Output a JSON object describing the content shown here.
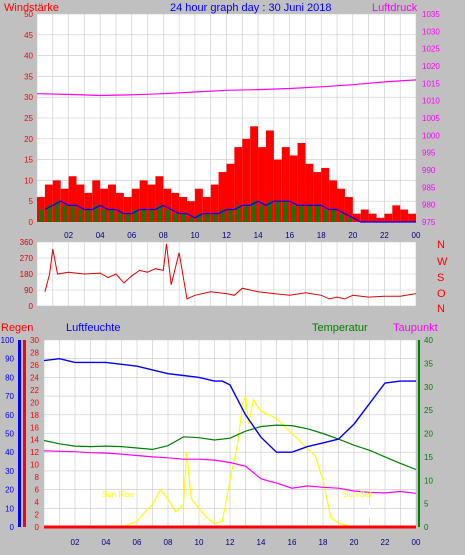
{
  "header": {
    "left_label": "Windstärke",
    "title": "24 hour graph day : 30 Juni 2018",
    "right_label": "Luftdruck"
  },
  "direction_cardinals": [
    "N",
    "W",
    "S",
    "O",
    "N"
  ],
  "bottom_labels": {
    "rain": "Regen",
    "humidity": "Luftfeuchte",
    "temperature": "Temperatur",
    "dewpoint": "Taupunkt",
    "sunrise": "Sun Rise",
    "sunset": "Sun Set"
  },
  "colors": {
    "background": "#c0c0c0",
    "plot_bg": "#ffffff",
    "grid": "#c8c8c8",
    "wind_gust": "#ff0000",
    "wind_avg": "#0000ff",
    "wind_green": "#008000",
    "pressure": "#ff00ff",
    "direction": "#e00000",
    "humidity": "#0000ff",
    "temperature": "#008000",
    "dewpoint": "#ff00ff",
    "rain": "#ff0000",
    "solar": "#ffff00",
    "solar_theory": "#d8d8d8"
  },
  "chart_data": [
    {
      "type": "line",
      "panel": "wind_pressure",
      "x_ticks": [
        "02",
        "04",
        "06",
        "08",
        "10",
        "12",
        "14",
        "16",
        "18",
        "20",
        "22",
        "00"
      ],
      "y_left_ticks": [
        "0",
        "5",
        "10",
        "15",
        "20",
        "25",
        "30",
        "35",
        "40",
        "45",
        "50"
      ],
      "y_right_ticks": [
        "975",
        "980",
        "985",
        "990",
        "995",
        "1000",
        "1005",
        "1010",
        "1015",
        "1020",
        "1025",
        "1030",
        "1035"
      ],
      "ylim_left": [
        0,
        50
      ],
      "ylim_right": [
        975,
        1035
      ],
      "series": [
        {
          "name": "Windstärke",
          "axis": "left",
          "x": [
            0.5,
            1,
            1.5,
            2,
            2.5,
            3,
            3.5,
            4,
            4.5,
            5,
            5.5,
            6,
            6.5,
            7,
            7.5,
            8,
            8.5,
            9,
            9.5,
            10,
            10.5,
            11,
            11.5,
            12,
            12.5,
            13,
            13.5,
            14,
            14.5,
            15,
            15.5,
            16,
            16.5,
            17,
            17.5,
            18,
            18.5,
            19,
            19.5,
            20,
            20.5,
            21,
            21.5,
            22,
            22.5,
            23,
            23.5,
            24
          ],
          "y": [
            6,
            9,
            10,
            8,
            11,
            9,
            7,
            10,
            8,
            9,
            7,
            6,
            8,
            10,
            9,
            11,
            8,
            7,
            6,
            5,
            8,
            6,
            9,
            12,
            14,
            18,
            20,
            23,
            18,
            22,
            15,
            18,
            16,
            19,
            14,
            12,
            13,
            10,
            8,
            6,
            2,
            3,
            2,
            1,
            2,
            4,
            3,
            2
          ]
        },
        {
          "name": "Windstärke Mittel",
          "axis": "left",
          "x": [
            0.5,
            1,
            1.5,
            2,
            2.5,
            3,
            3.5,
            4,
            4.5,
            5,
            5.5,
            6,
            6.5,
            7,
            7.5,
            8,
            8.5,
            9,
            9.5,
            10,
            10.5,
            11,
            11.5,
            12,
            12.5,
            13,
            13.5,
            14,
            14.5,
            15,
            15.5,
            16,
            16.5,
            17,
            17.5,
            18,
            18.5,
            19,
            19.5,
            20,
            20.5,
            21,
            21.5,
            22,
            22.5,
            23,
            23.5,
            24
          ],
          "y": [
            3,
            4,
            5,
            4,
            4,
            3,
            3,
            4,
            3,
            3,
            2,
            2,
            3,
            3,
            3,
            4,
            3,
            2,
            2,
            1,
            2,
            2,
            2,
            3,
            3,
            4,
            4,
            5,
            4,
            5,
            5,
            5,
            4,
            4,
            4,
            4,
            3,
            3,
            2,
            1,
            0,
            0,
            0,
            0,
            0,
            0,
            0,
            0
          ]
        },
        {
          "name": "Luftdruck",
          "axis": "right",
          "x": [
            0,
            2,
            4,
            6,
            8,
            10,
            12,
            14,
            16,
            18,
            20,
            22,
            24
          ],
          "y": [
            1012,
            1011.8,
            1011.5,
            1011.7,
            1012,
            1012.5,
            1013,
            1013.2,
            1013.5,
            1014,
            1014.6,
            1015.4,
            1016
          ]
        }
      ]
    },
    {
      "type": "line",
      "panel": "wind_direction",
      "y_ticks": [
        "0",
        "90",
        "180",
        "270",
        "360"
      ],
      "ylim": [
        0,
        360
      ],
      "series": [
        {
          "name": "Windrichtung",
          "x": [
            0.5,
            0.8,
            1,
            1.3,
            2,
            3,
            4,
            4.5,
            5,
            5.5,
            6,
            6.5,
            7,
            7.5,
            8,
            8.2,
            8.5,
            9,
            9.5,
            10,
            11,
            12,
            12.5,
            13,
            14,
            15,
            16,
            17,
            18,
            18.5,
            19,
            19.5,
            20,
            21,
            22,
            23,
            24
          ],
          "y": [
            80,
            180,
            320,
            180,
            190,
            180,
            185,
            160,
            180,
            130,
            170,
            200,
            190,
            210,
            200,
            350,
            120,
            300,
            40,
            60,
            80,
            70,
            60,
            100,
            80,
            70,
            60,
            75,
            60,
            40,
            50,
            40,
            60,
            50,
            55,
            55,
            70
          ]
        }
      ]
    },
    {
      "type": "line",
      "panel": "humidity_temperature",
      "y_left_ticks": [
        "0",
        "10",
        "20",
        "30",
        "40",
        "50",
        "60",
        "70",
        "80",
        "90",
        "100"
      ],
      "y_rain_ticks": [
        "0",
        "2",
        "4",
        "6",
        "8",
        "10",
        "12",
        "14",
        "16",
        "18",
        "20",
        "22",
        "24",
        "26",
        "28",
        "30"
      ],
      "y_right_ticks": [
        "0",
        "5",
        "10",
        "15",
        "20",
        "25",
        "30",
        "35",
        "40"
      ],
      "ylim_humidity": [
        0,
        100
      ],
      "ylim_rain": [
        0,
        30
      ],
      "ylim_temperature": [
        0,
        40
      ],
      "series": [
        {
          "name": "Luftfeuchte",
          "axis": "left",
          "x": [
            0,
            1,
            2,
            3,
            4,
            5,
            6,
            7,
            8,
            9,
            10,
            11,
            11.5,
            12,
            13,
            14,
            15,
            16,
            17,
            18,
            19,
            20,
            21,
            22,
            23,
            24
          ],
          "y": [
            89,
            90,
            88,
            88,
            88,
            87,
            86,
            84,
            82,
            81,
            80,
            78,
            78,
            76,
            60,
            48,
            40,
            40,
            43,
            45,
            47,
            55,
            66,
            77,
            78,
            78
          ]
        },
        {
          "name": "Temperatur",
          "axis": "right",
          "x": [
            0,
            1,
            2,
            3,
            4,
            5,
            6,
            7,
            8,
            9,
            10,
            11,
            12,
            13,
            14,
            15,
            16,
            17,
            18,
            19,
            20,
            21,
            22,
            23,
            24
          ],
          "y": [
            18.5,
            17.8,
            17.3,
            17.2,
            17.3,
            17.2,
            16.9,
            16.6,
            17.4,
            19.3,
            19.1,
            18.6,
            19,
            20.5,
            21.5,
            21.8,
            21.7,
            21,
            20,
            18.8,
            17.5,
            16.4,
            15,
            13.6,
            12.3
          ]
        },
        {
          "name": "Taupunkt",
          "axis": "right",
          "x": [
            0,
            1,
            2,
            3,
            4,
            5,
            6,
            7,
            8,
            9,
            10,
            11,
            12,
            13,
            14,
            15,
            16,
            17,
            18,
            19,
            20,
            21,
            22,
            23,
            24
          ],
          "y": [
            16.3,
            16.2,
            16.1,
            15.9,
            15.8,
            15.6,
            15.3,
            15,
            14.8,
            14.5,
            14.5,
            14.3,
            13.8,
            13,
            10.3,
            9.4,
            8.3,
            8.8,
            8.5,
            8.3,
            7.7,
            7.4,
            7.3,
            7.6,
            7.2
          ]
        },
        {
          "name": "Regen",
          "axis": "rain",
          "x": [
            0,
            24
          ],
          "y": [
            0,
            0
          ]
        },
        {
          "name": "Sonne",
          "axis": "left",
          "x": [
            0,
            5.0,
            6.0,
            6.5,
            7,
            7.5,
            8,
            8.5,
            9,
            9.2,
            9.5,
            10,
            10.5,
            11,
            11.5,
            12,
            12.5,
            12.8,
            13,
            13.2,
            13.5,
            14,
            14.5,
            15,
            16,
            17,
            17.5,
            18,
            18.5,
            19,
            19.5,
            20,
            20.5,
            21,
            24
          ],
          "y": [
            0,
            0,
            3,
            8,
            12,
            20,
            15,
            8,
            12,
            40,
            15,
            10,
            5,
            2,
            3,
            25,
            45,
            65,
            70,
            55,
            68,
            62,
            60,
            58,
            50,
            42,
            38,
            25,
            5,
            2,
            1,
            0,
            0,
            0,
            0
          ]
        }
      ]
    }
  ]
}
